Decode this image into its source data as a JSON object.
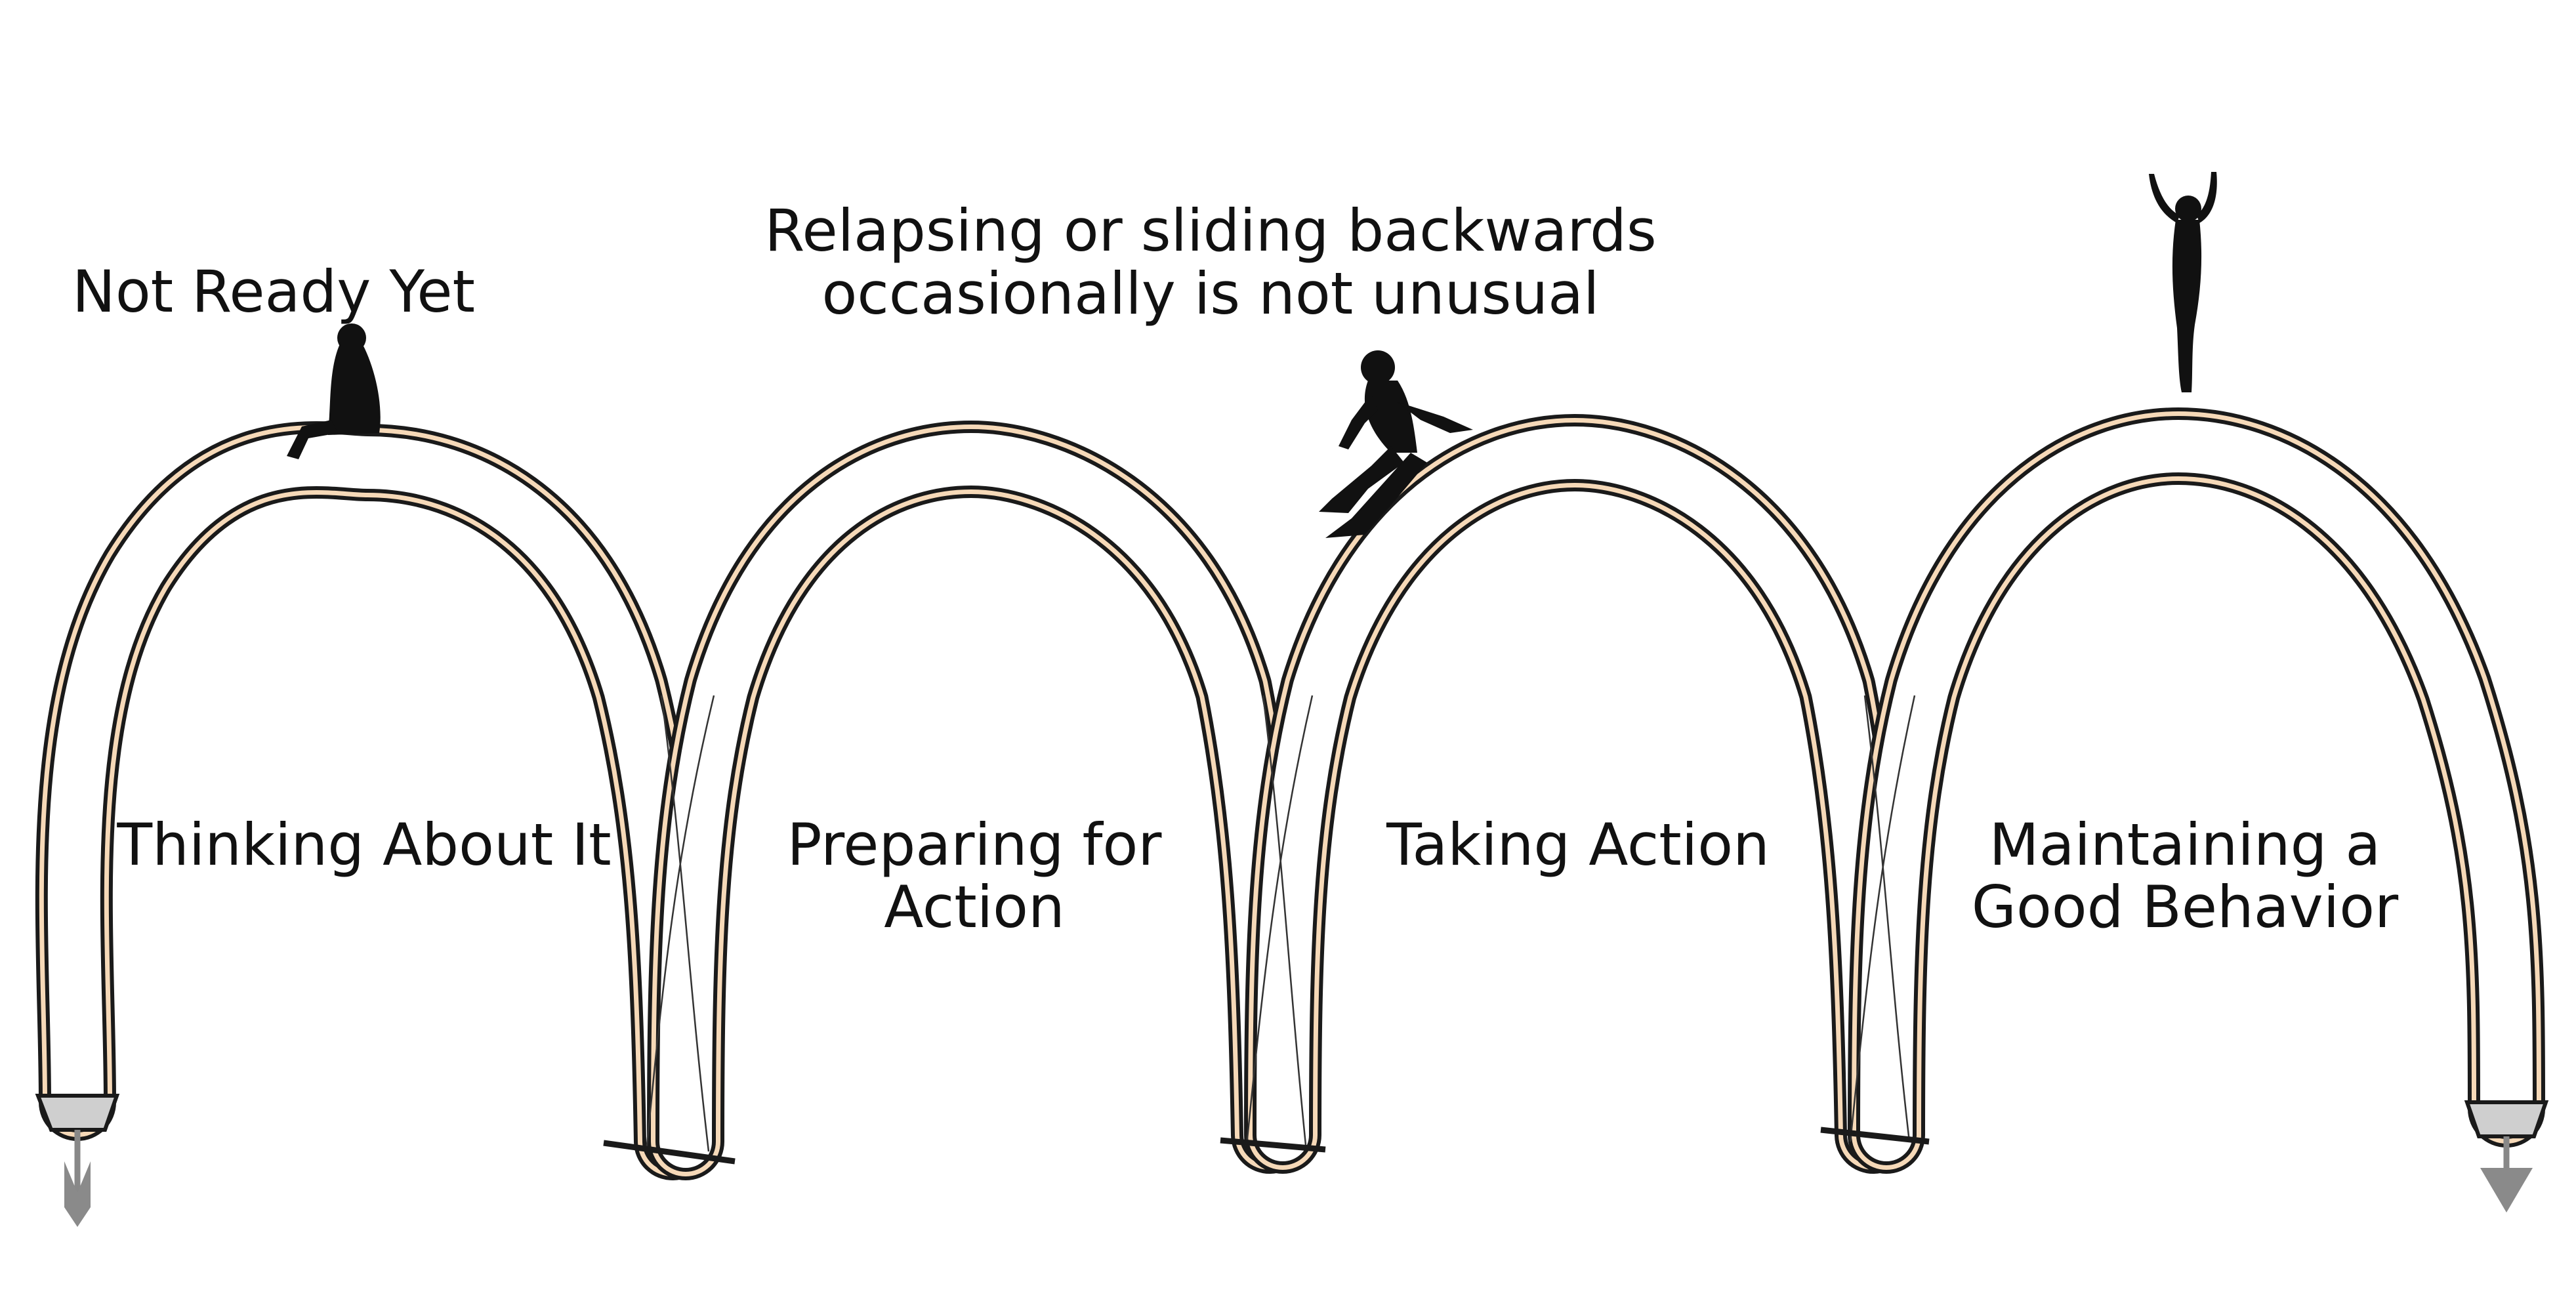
{
  "diagram": {
    "stages": [
      {
        "label_lines": [
          "Thinking About It"
        ]
      },
      {
        "label_lines": [
          "Preparing for",
          "Action"
        ]
      },
      {
        "label_lines": [
          "Taking Action"
        ]
      },
      {
        "label_lines": [
          "Maintaining a",
          "Good Behavior"
        ]
      }
    ],
    "annotations": {
      "not_ready": "Not Ready Yet",
      "relapse_line1": "Relapsing or sliding backwards",
      "relapse_line2": "occasionally is not unusual"
    },
    "figures": [
      "sitting-person-icon",
      "sliding-person-icon",
      "celebrating-person-icon"
    ],
    "arrows": [
      "start-arrow-icon",
      "exit-arrow-icon"
    ],
    "colors": {
      "band_fill": "#f6d9b8",
      "outline": "#1a1a1a",
      "figure": "#111111",
      "arrow": "#8a8a8a",
      "label": "#111111"
    }
  }
}
